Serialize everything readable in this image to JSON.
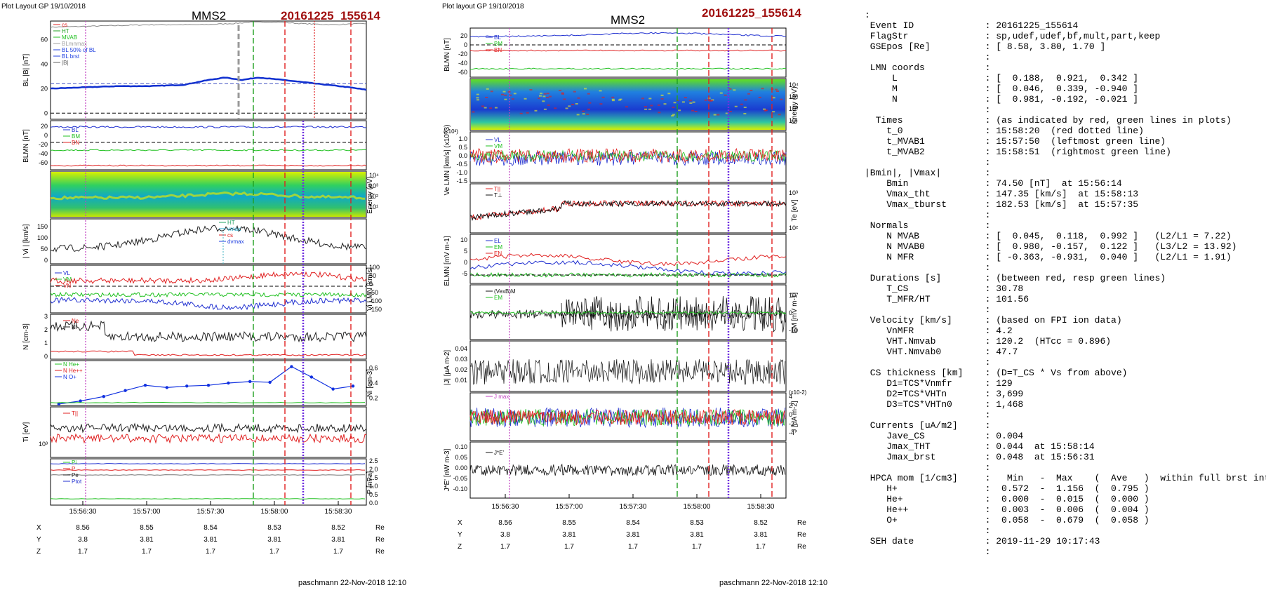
{
  "left_figure": {
    "header": "Plot Layout GP 19/10/2018",
    "spacecraft": "MMS2",
    "event": "20161225_155614",
    "footer": "paschmann 22-Nov-2018 12:10",
    "time_ticks": [
      "15:56:30",
      "15:57:00",
      "15:57:30",
      "15:58:00",
      "15:58:30"
    ],
    "position_rows": [
      {
        "label": "X",
        "values": [
          "8.56",
          "8.55",
          "8.54",
          "8.53",
          "8.52"
        ],
        "unit": "Re"
      },
      {
        "label": "Y",
        "values": [
          "3.8",
          "3.81",
          "3.81",
          "3.81",
          "3.81"
        ],
        "unit": "Re"
      },
      {
        "label": "Z",
        "values": [
          "1.7",
          "1.7",
          "1.7",
          "1.7",
          "1.7"
        ],
        "unit": "Re"
      }
    ],
    "panel_ylabels": [
      "BL |B| [nT]",
      "BLMN [nT]",
      "Energy (eV)",
      "| Vi | [km/s]",
      "Vi LMN [km/s]",
      "N [cm-3]",
      "Ni [cm-3]",
      "Ti [eV]",
      "P [nPa]"
    ],
    "legend_p1": [
      "cs",
      "HT",
      "MVAB",
      "BLmnmax",
      "BL 50% of BL",
      "BL brst",
      "|B|"
    ],
    "legend_p2": [
      "BL",
      "BM",
      "BN"
    ],
    "legend_p4": [
      "HT",
      "vmax",
      "cs",
      "dvmax"
    ],
    "legend_p5": [
      "VL",
      "VM",
      "VN"
    ],
    "legend_p6": [
      "Ne",
      "Ni"
    ],
    "legend_p7": [
      "N He+",
      "N He++",
      "N O+"
    ],
    "legend_p8": [
      "T||"
    ],
    "legend_p9": [
      "Pi",
      "P",
      "Pe",
      "Ptot"
    ]
  },
  "middle_figure": {
    "header": "Plot layout GP 19/10/2018",
    "spacecraft": "MMS2",
    "event": "20161225_155614",
    "footer": "paschmann 22-Nov-2018 12:10",
    "time_ticks": [
      "15:56:30",
      "15:57:00",
      "15:57:30",
      "15:58:00",
      "15:58:30"
    ],
    "position_rows": [
      {
        "label": "X",
        "values": [
          "8.56",
          "8.55",
          "8.54",
          "8.53",
          "8.52"
        ],
        "unit": "Re"
      },
      {
        "label": "Y",
        "values": [
          "3.8",
          "3.81",
          "3.81",
          "3.81",
          "3.81"
        ],
        "unit": "Re"
      },
      {
        "label": "Z",
        "values": [
          "1.7",
          "1.7",
          "1.7",
          "1.7",
          "1.7"
        ],
        "unit": "Re"
      }
    ],
    "panel_ylabels": [
      "BLMN [nT]",
      "Energy (eV)",
      "Ve LMN [km/s] (x10^3)",
      "Te [eV]",
      "ELMN [mV m-1]",
      "EM [mV m-1]",
      "|J| [µA m-2]",
      "J [µA m-2]",
      "J*E' [nW m-3]"
    ],
    "legend_p1": [
      "BL",
      "BM",
      "BN"
    ],
    "legend_p3": [
      "VL",
      "VM",
      "VN"
    ],
    "legend_p4": [
      "T||",
      "T⊥"
    ],
    "legend_p5": [
      "EL",
      "EM",
      "EN"
    ],
    "legend_p6": [
      "(VexB)M",
      "EM"
    ],
    "legend_p8": [
      "J max"
    ],
    "legend_p9": [
      "J*E'"
    ],
    "jscale": "(x10-2)"
  },
  "info_panel": {
    "lines": [
      ":",
      " Event ID             : 20161225_155614",
      " FlagStr              : sp,udef,udef,bf,mult,part,keep",
      " GSEpos [Re]          : [ 8.58, 3.80, 1.70 ]",
      "                      :",
      " LMN coords           :",
      "     L                : [  0.188,  0.921,  0.342 ]",
      "     M                : [  0.046,  0.339, -0.940 ]",
      "     N                : [  0.981, -0.192, -0.021 ]",
      "                      :",
      "  Times               : (as indicated by red, green lines in plots)",
      "    t_0               : 15:58:20  (red dotted line)",
      "    t_MVAB1           : 15:57:50  (leftmost green line)",
      "    t_MVAB2           : 15:58:51  (rightmost green line)",
      "                      :",
      "|Bmin|, |Vmax|        :",
      "    Bmin              : 74.50 [nT]  at 15:56:14",
      "    Vmax_tht          : 147.35 [km/s]  at 15:58:13",
      "    Vmax_tburst       : 182.53 [km/s]  at 15:57:35",
      "                      :",
      " Normals              :",
      "    N MVAB            : [  0.045,  0.118,  0.992 ]   (L2/L1 = 7.22)",
      "    N MVAB0           : [  0.980, -0.157,  0.122 ]   (L3/L2 = 13.92)",
      "    N MFR             : [ -0.363, -0.931,  0.040 ]   (L2/L1 = 1.91)",
      "                      :",
      " Durations [s]        : (between red, resp green lines)",
      "    T_CS              : 30.78",
      "    T_MFR/HT          : 101.56",
      "                      :",
      " Velocity [km/s]      : (based on FPI ion data)",
      "    VnMFR             : 4.2",
      "    VHT.Nmvab         : 120.2  (HTcc = 0.896)",
      "    VHT.Nmvab0        : 47.7",
      "                      :",
      " CS thickness [km]    : (D=T_CS * Vs from above)",
      "    D1=TCS*Vnmfr      : 129",
      "    D2=TCS*VHTn       : 3,699",
      "    D3=TCS*VHTn0      : 1,468",
      "                      :",
      " Currents [uA/m2]     :",
      "    Jave_CS           : 0.004",
      "    Jmax_THT          : 0.044  at 15:58:14",
      "    Jmax_brst         : 0.048  at 15:56:31",
      "                      :",
      " HPCA mom [1/cm3]     :   Min   -  Max    (  Ave   )  within full brst int",
      "    H+                :  0.572  -  1.156  (  0.795 )",
      "    He+               :  0.000  -  0.015  (  0.000 )",
      "    He++              :  0.003  -  0.006  (  0.004 )",
      "    O+                :  0.058  -  0.679  (  0.058 )",
      "                      :",
      " SEH date             : 2019-11-29 10:17:43",
      "                      :"
    ]
  },
  "chart_data": [
    {
      "type": "line",
      "figure": "left",
      "panel": "BL |B| [nT]",
      "ylim": [
        -5,
        75
      ],
      "yticks": [
        0,
        20,
        40,
        60
      ],
      "series": [
        {
          "name": "|B|",
          "color": "#888888",
          "x_s": [
            0,
            30,
            60,
            90,
            110,
            120,
            140,
            150,
            170,
            190
          ],
          "values": [
            70,
            71,
            72,
            72,
            73,
            74,
            74,
            73,
            72,
            73
          ]
        },
        {
          "name": "BL brst",
          "color": "#1030d0",
          "x_s": [
            0,
            20,
            40,
            60,
            80,
            95,
            105,
            115,
            125,
            140,
            160,
            180,
            190
          ],
          "values": [
            20,
            21,
            22,
            22,
            23,
            27,
            29,
            27,
            29,
            27,
            24,
            21,
            19
          ]
        }
      ]
    },
    {
      "type": "scatter",
      "figure": "left",
      "panel": "Ni [cm-3]",
      "ylim": [
        0.1,
        0.7
      ],
      "yticks": [
        0.2,
        0.4,
        0.6
      ],
      "series": [
        {
          "name": "N O+",
          "color": "#1030e0",
          "x_s": [
            5,
            18,
            32,
            45,
            57,
            70,
            82,
            95,
            107,
            120,
            132,
            145,
            157,
            170,
            182
          ],
          "values": [
            0.12,
            0.16,
            0.22,
            0.3,
            0.37,
            0.34,
            0.36,
            0.37,
            0.4,
            0.42,
            0.41,
            0.62,
            0.48,
            0.32,
            0.36
          ]
        }
      ]
    }
  ]
}
